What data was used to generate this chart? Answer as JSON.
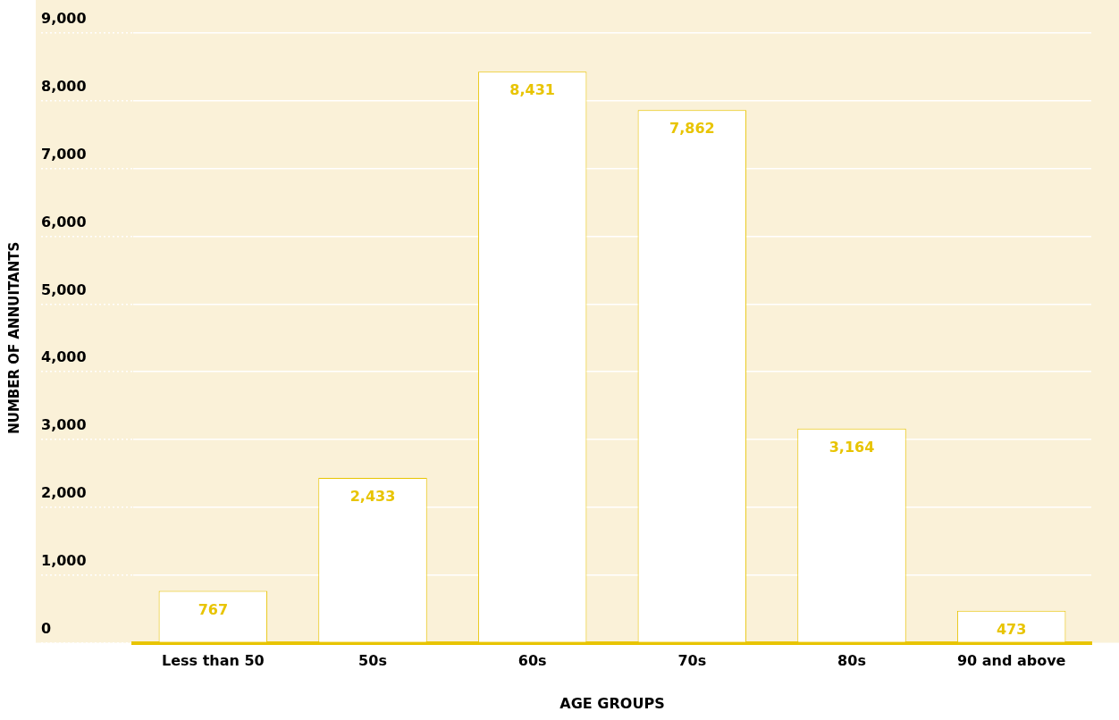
{
  "chart_data": {
    "type": "bar",
    "xlabel": "AGE GROUPS",
    "ylabel": "NUMBER OF ANNUITANTS",
    "categories": [
      "Less than 50",
      "50s",
      "60s",
      "70s",
      "80s",
      "90 and above"
    ],
    "values": [
      767,
      2433,
      8431,
      7862,
      3164,
      473
    ],
    "value_labels": [
      "767",
      "2,433",
      "8,431",
      "7,862",
      "3,164",
      "473"
    ],
    "color": "#ffffff",
    "ylim": [
      0,
      9000
    ],
    "yticks": [
      {
        "value": 0,
        "label": "0"
      },
      {
        "value": 1000,
        "label": "1,000"
      },
      {
        "value": 2000,
        "label": "2,000"
      },
      {
        "value": 3000,
        "label": "3,000"
      },
      {
        "value": 4000,
        "label": "4,000"
      },
      {
        "value": 5000,
        "label": "5,000"
      },
      {
        "value": 6000,
        "label": "6,000"
      },
      {
        "value": 7000,
        "label": "7,000"
      },
      {
        "value": 8000,
        "label": "8,000"
      },
      {
        "value": 9000,
        "label": "9,000"
      }
    ],
    "grid": "y",
    "legend": false
  }
}
